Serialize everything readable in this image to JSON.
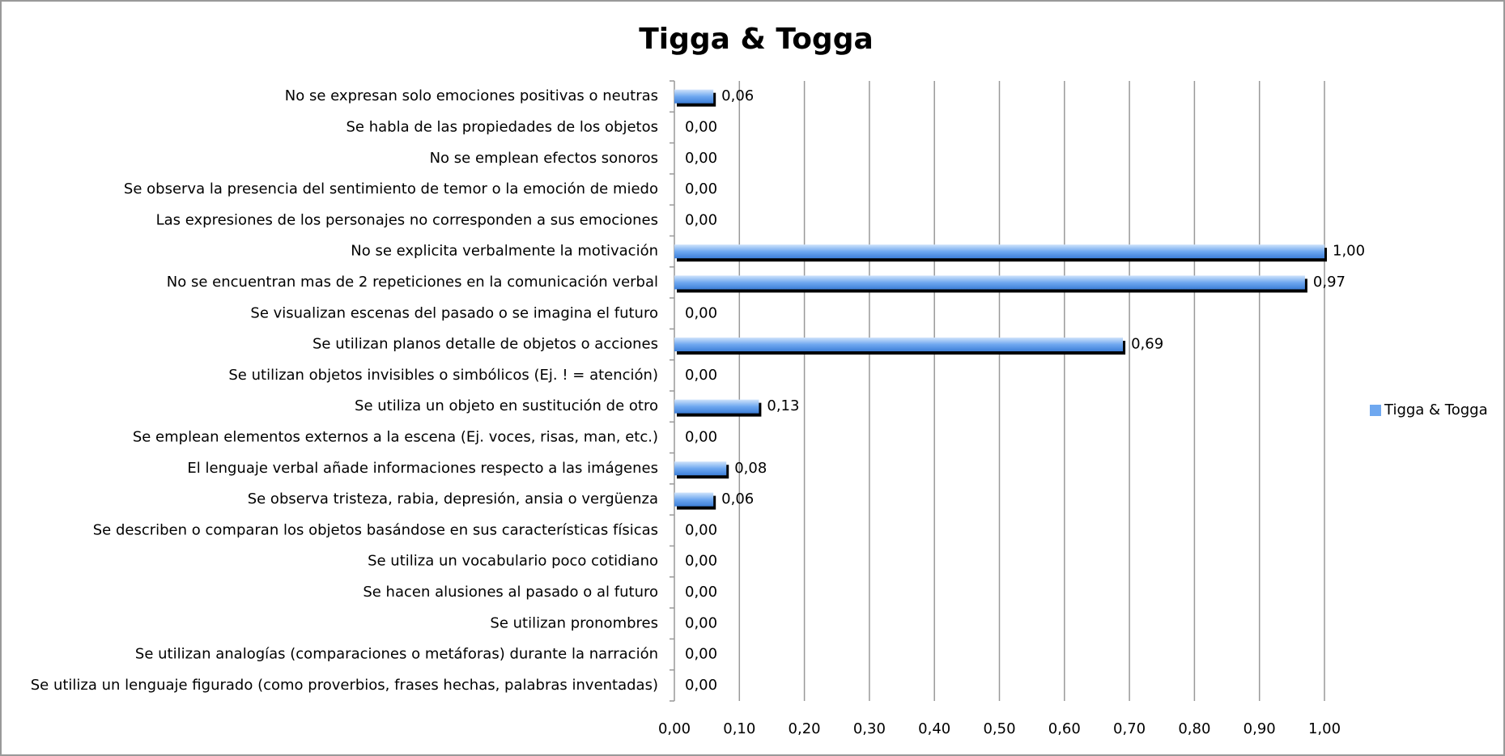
{
  "chart_data": {
    "type": "bar",
    "orientation": "horizontal",
    "title": "Tigga & Togga",
    "categories": [
      "No se expresan solo emociones positivas o neutras",
      "Se habla de las propiedades de los objetos",
      "No se emplean efectos sonoros",
      "Se observa la presencia del sentimiento de temor o la emoción de miedo",
      "Las expresiones de los personajes no corresponden a sus emociones",
      "No se explicita verbalmente la motivación",
      "No se encuentran mas de 2 repeticiones en la comunicación verbal",
      "Se visualizan escenas del pasado o se imagina el futuro",
      "Se utilizan planos detalle de objetos o acciones",
      "Se utilizan objetos invisibles o simbólicos (Ej. ! = atención)",
      "Se utiliza un objeto en sustitución de otro",
      "Se emplean elementos externos a la escena (Ej. voces, risas, man, etc.)",
      "El lenguaje verbal añade informaciones respecto a las imágenes",
      "Se observa tristeza, rabia, depresión, ansia o vergüenza",
      "Se describen o comparan los objetos basándose en sus características físicas",
      "Se utiliza un vocabulario poco cotidiano",
      "Se hacen alusiones al pasado o al futuro",
      "Se utilizan pronombres",
      "Se utilizan analogías (comparaciones o metáforas) durante la narración",
      "Se utiliza un lenguaje figurado (como proverbios, frases hechas, palabras inventadas)"
    ],
    "series": [
      {
        "name": "Tigga & Togga",
        "color": "#6fa8f0",
        "values": [
          0.06,
          0,
          0,
          0,
          0,
          1,
          0.97,
          0,
          0.69,
          0,
          0.13,
          0,
          0.08,
          0.06,
          0,
          0,
          0,
          0,
          0,
          0
        ],
        "value_labels": [
          "0,06",
          "0,00",
          "0,00",
          "0,00",
          "0,00",
          "1,00",
          "0,97",
          "0,00",
          "0,69",
          "0,00",
          "0,13",
          "0,00",
          "0,08",
          "0,06",
          "0,00",
          "0,00",
          "0,00",
          "0,00",
          "0,00",
          "0,00"
        ]
      }
    ],
    "xlim": [
      0,
      1
    ],
    "xticks": [
      {
        "value": 0,
        "label": "0,00"
      },
      {
        "value": 0.1,
        "label": "0,10"
      },
      {
        "value": 0.2,
        "label": "0,20"
      },
      {
        "value": 0.3,
        "label": "0,30"
      },
      {
        "value": 0.4,
        "label": "0,40"
      },
      {
        "value": 0.5,
        "label": "0,50"
      },
      {
        "value": 0.6,
        "label": "0,60"
      },
      {
        "value": 0.7,
        "label": "0,70"
      },
      {
        "value": 0.8,
        "label": "0,80"
      },
      {
        "value": 0.9,
        "label": "0,90"
      },
      {
        "value": 1,
        "label": "1,00"
      }
    ],
    "grid": true,
    "legend": "right"
  }
}
